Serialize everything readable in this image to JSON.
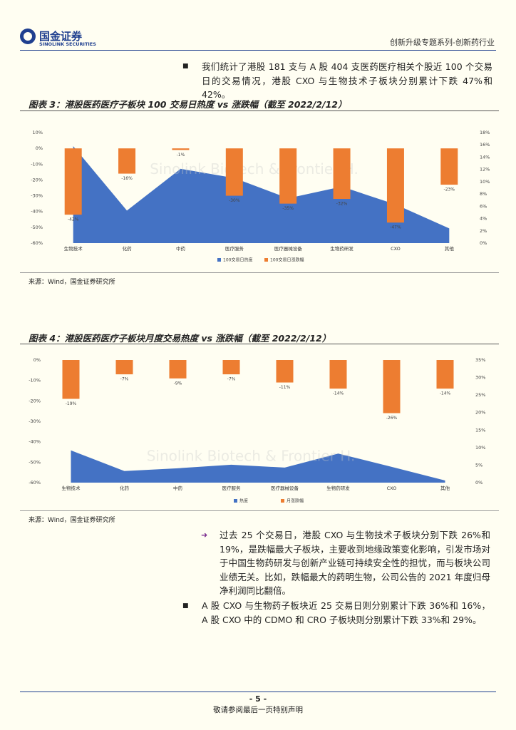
{
  "header": {
    "logo_cn": "国金证券",
    "logo_en": "SINOLINK SECURITIES",
    "series_title": "创新升级专题系列-创新药行业"
  },
  "paragraphs": [
    "我们统计了港股 181 支与 A 股 404 支医药医疗相关个股近 100 个交易日的交易情况，港股 CXO 与生物技术子板块分别累计下跌 47%和 42%。",
    "过去 25 个交易日，港股 CXO 与生物技术子板块分别下跌 26%和 19%，是跌幅最大子板块，主要收到地缘政策变化影响，引发市场对于中国生物药研发与创新产业链可持续安全性的担忧，而与板块公司业绩无关。比如，跌幅最大的药明生物，公司公告的 2021 年度归母净利润同比翻倍。",
    "A 股 CXO 与生物药子板块近 25 交易日则分别累计下跌 36%和 16%，A 股 CXO 中的 CDMO 和 CRO 子板块则分别累计下跌 33%和 29%。"
  ],
  "chart_data": [
    {
      "type": "combo",
      "title": "图表 3：港股医药医疗子板块 100 交易日热度 vs 涨跌幅（截至 2022/2/12）",
      "source": "来源：Wind，国金证券研究所",
      "watermark": "Sinolink Biotech & Frontier H.",
      "categories": [
        "生物技术",
        "化药",
        "中药",
        "医疗服务",
        "医疗器械设备",
        "生物药研发",
        "CXO",
        "其他"
      ],
      "series": [
        {
          "name": "100交易日热度",
          "type": "area",
          "axis": "y2",
          "color": "#4472c4",
          "values": [
            15.8,
            5.3,
            12.1,
            10.6,
            7.3,
            9.2,
            6.3,
            2.4
          ]
        },
        {
          "name": "100交易日涨跌幅",
          "type": "bar",
          "color": "#ed7d31",
          "values": [
            -42,
            -16,
            -1,
            -30,
            -35,
            -32,
            -47,
            -23
          ],
          "value_labels": [
            "-42%",
            "-16%",
            "-1%",
            "-30%",
            "-35%",
            "-32%",
            "-47%",
            "-23%"
          ]
        }
      ],
      "ylim": [
        -60,
        10
      ],
      "yticks": [
        {
          "value": 10,
          "label": "10%"
        },
        {
          "value": 0,
          "label": "0%"
        },
        {
          "value": -10,
          "label": "-10%"
        },
        {
          "value": -20,
          "label": "-20%"
        },
        {
          "value": -30,
          "label": "-30%"
        },
        {
          "value": -40,
          "label": "-40%"
        },
        {
          "value": -50,
          "label": "-50%"
        },
        {
          "value": -60,
          "label": "-60%"
        }
      ],
      "y2lim": [
        0,
        18
      ],
      "y2ticks": [
        {
          "value": 18,
          "label": "18%"
        },
        {
          "value": 16,
          "label": "16%"
        },
        {
          "value": 14,
          "label": "14%"
        },
        {
          "value": 12,
          "label": "12%"
        },
        {
          "value": 10,
          "label": "10%"
        },
        {
          "value": 8,
          "label": "8%"
        },
        {
          "value": 6,
          "label": "6%"
        },
        {
          "value": 4,
          "label": "4%"
        },
        {
          "value": 2,
          "label": "2%"
        },
        {
          "value": 0,
          "label": "0%"
        }
      ],
      "legend": "bottom"
    },
    {
      "type": "combo",
      "title": "图表 4：港股医药医疗子板块月度交易热度 vs 涨跌幅（截至 2022/2/12）",
      "source": "来源：Wind，国金证券研究所",
      "watermark": "Sinolink Biotech & Frontier H.",
      "categories": [
        "生物技术",
        "化药",
        "中药",
        "医疗服务",
        "医疗器械设备",
        "生物药研发",
        "CXO",
        "其他"
      ],
      "series": [
        {
          "name": "热度",
          "type": "area",
          "axis": "y2",
          "color": "#4472c4",
          "values": [
            9.2,
            3.3,
            4.1,
            5.1,
            4.3,
            8.3,
            4.5,
            0.6
          ]
        },
        {
          "name": "月涨跌幅",
          "type": "bar",
          "color": "#ed7d31",
          "values": [
            -19,
            -7,
            -9,
            -7,
            -11,
            -14,
            -26,
            -14
          ],
          "value_labels": [
            "-19%",
            "-7%",
            "-9%",
            "-7%",
            "-11%",
            "-14%",
            "-26%",
            "-14%"
          ]
        }
      ],
      "ylim": [
        -60,
        0
      ],
      "yticks": [
        {
          "value": 0,
          "label": "0%"
        },
        {
          "value": -10,
          "label": "-10%"
        },
        {
          "value": -20,
          "label": "-20%"
        },
        {
          "value": -30,
          "label": "-30%"
        },
        {
          "value": -40,
          "label": "-40%"
        },
        {
          "value": -50,
          "label": "-50%"
        },
        {
          "value": -60,
          "label": "-60%"
        }
      ],
      "y2lim": [
        0,
        35
      ],
      "y2ticks": [
        {
          "value": 35,
          "label": "35%"
        },
        {
          "value": 30,
          "label": "30%"
        },
        {
          "value": 25,
          "label": "25%"
        },
        {
          "value": 20,
          "label": "20%"
        },
        {
          "value": 15,
          "label": "15%"
        },
        {
          "value": 10,
          "label": "10%"
        },
        {
          "value": 5,
          "label": "5%"
        },
        {
          "value": 0,
          "label": "0%"
        }
      ],
      "legend": "bottom"
    }
  ],
  "footer": {
    "page": "- 5 -",
    "note": "敬请参阅最后一页特别声明"
  }
}
